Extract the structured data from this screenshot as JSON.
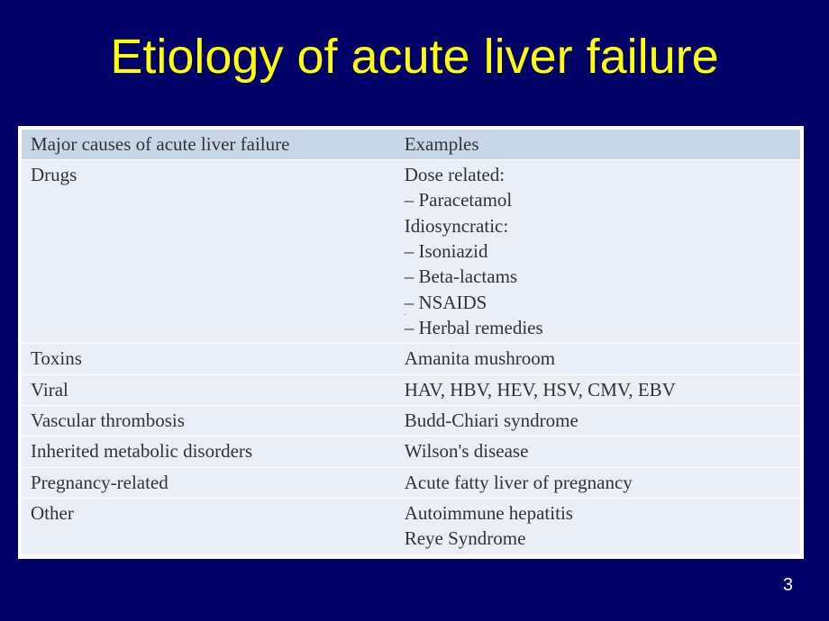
{
  "slide": {
    "title": "Etiology of acute liver failure",
    "page_number": "3",
    "background_color": "#000066",
    "title_color": "#ffff00",
    "title_fontsize": 54
  },
  "table": {
    "header_bg": "#c8d6ea",
    "row_bg": "#e9eef7",
    "text_color": "#333333",
    "fontsize": 21,
    "columns": [
      "Major causes of acute liver failure",
      "Examples"
    ],
    "rows": [
      {
        "cause": "Drugs",
        "examples": "Dose related:\n– Paracetamol\nIdiosyncratic:\n– Isoniazid\n– Beta-lactams\n– NSAIDS\n– Herbal remedies"
      },
      {
        "cause": "Toxins",
        "examples": "Amanita mushroom"
      },
      {
        "cause": "Viral",
        "examples": "HAV, HBV, HEV, HSV, CMV, EBV"
      },
      {
        "cause": "Vascular thrombosis",
        "examples": "Budd-Chiari syndrome"
      },
      {
        "cause": "Inherited metabolic disorders",
        "examples": "Wilson's disease"
      },
      {
        "cause": "Pregnancy-related",
        "examples": "Acute fatty liver of pregnancy"
      },
      {
        "cause": "Other",
        "examples": "Autoimmune hepatitis\nReye Syndrome"
      }
    ]
  }
}
